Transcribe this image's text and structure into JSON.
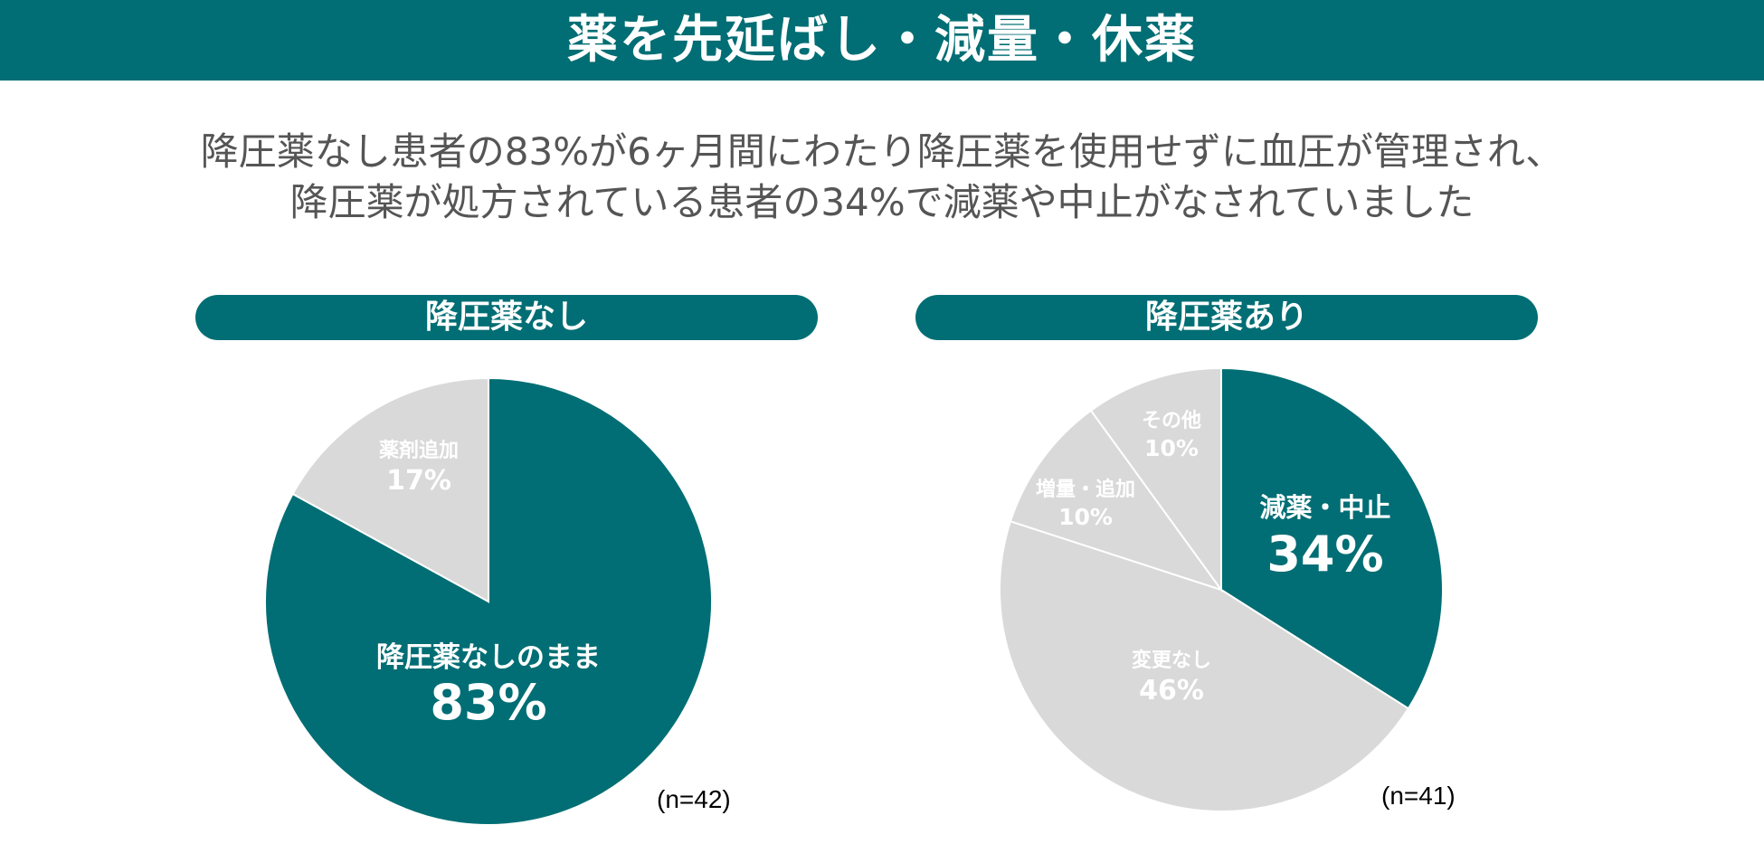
{
  "page": {
    "title": "薬を先延ばし・減量・休薬",
    "subtitle_line1": "降圧薬なし患者の83%が6ヶ月間にわたり降圧薬を使用せずに血圧が管理され、",
    "subtitle_line2": "降圧薬が処方されている患者の34%で減薬や中止がなされていました"
  },
  "colors": {
    "teal": "#006e74",
    "gray": "#d9d9d9",
    "white": "#ffffff"
  },
  "chart_data": [
    {
      "type": "pie",
      "title": "降圧薬なし",
      "n_label": "(n=42)",
      "slices": [
        {
          "label": "降圧薬なしのまま",
          "value": 83,
          "value_label": "83%",
          "color": "#006e74"
        },
        {
          "label": "薬剤追加",
          "value": 17,
          "value_label": "17%",
          "color": "#d9d9d9"
        }
      ]
    },
    {
      "type": "pie",
      "title": "降圧薬あり",
      "n_label": "(n=41)",
      "slices": [
        {
          "label": "減薬・中止",
          "value": 34,
          "value_label": "34%",
          "color": "#006e74"
        },
        {
          "label": "変更なし",
          "value": 46,
          "value_label": "46%",
          "color": "#d9d9d9"
        },
        {
          "label": "増量・追加",
          "value": 10,
          "value_label": "10%",
          "color": "#d9d9d9"
        },
        {
          "label": "その他",
          "value": 10,
          "value_label": "10%",
          "color": "#d9d9d9"
        }
      ]
    }
  ]
}
